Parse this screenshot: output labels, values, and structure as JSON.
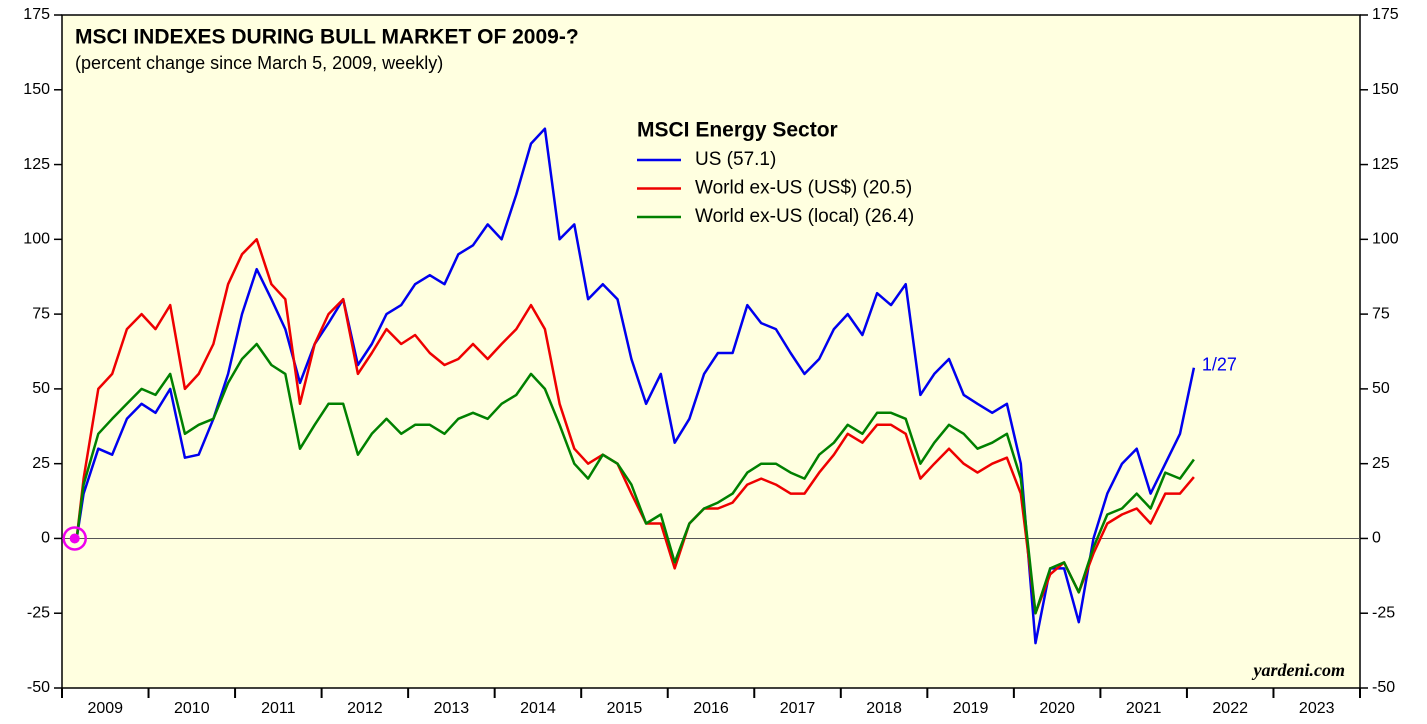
{
  "chart_data": {
    "type": "line",
    "title": "MSCI INDEXES DURING BULL MARKET OF 2009-?",
    "subtitle": "(percent change since March 5, 2009, weekly)",
    "legend_title": "MSCI Energy Sector",
    "annotation": "1/27",
    "source": "yardeni.com",
    "xlim": [
      2009,
      2024
    ],
    "xticks": [
      2009,
      2010,
      2011,
      2012,
      2013,
      2014,
      2015,
      2016,
      2017,
      2018,
      2019,
      2020,
      2021,
      2022,
      2023
    ],
    "ylim": [
      -50,
      175
    ],
    "yticks": [
      -50,
      -25,
      0,
      25,
      50,
      75,
      100,
      125,
      150,
      175
    ],
    "x": [
      2009.17,
      2009.25,
      2009.42,
      2009.58,
      2009.75,
      2009.92,
      2010.08,
      2010.25,
      2010.42,
      2010.58,
      2010.75,
      2010.92,
      2011.08,
      2011.25,
      2011.42,
      2011.58,
      2011.75,
      2011.92,
      2012.08,
      2012.25,
      2012.42,
      2012.58,
      2012.75,
      2012.92,
      2013.08,
      2013.25,
      2013.42,
      2013.58,
      2013.75,
      2013.92,
      2014.08,
      2014.25,
      2014.42,
      2014.58,
      2014.75,
      2014.92,
      2015.08,
      2015.25,
      2015.42,
      2015.58,
      2015.75,
      2015.92,
      2016.08,
      2016.25,
      2016.42,
      2016.58,
      2016.75,
      2016.92,
      2017.08,
      2017.25,
      2017.42,
      2017.58,
      2017.75,
      2017.92,
      2018.08,
      2018.25,
      2018.42,
      2018.58,
      2018.75,
      2018.92,
      2019.08,
      2019.25,
      2019.42,
      2019.58,
      2019.75,
      2019.92,
      2020.08,
      2020.25,
      2020.42,
      2020.58,
      2020.75,
      2020.92,
      2021.08,
      2021.25,
      2021.42,
      2021.58,
      2021.75,
      2021.92,
      2022.08
    ],
    "series": [
      {
        "name": "US (57.1)",
        "color": "#0000ee",
        "values": [
          0,
          15,
          30,
          28,
          40,
          45,
          42,
          50,
          27,
          28,
          40,
          55,
          75,
          90,
          80,
          70,
          52,
          65,
          72,
          80,
          58,
          65,
          75,
          78,
          85,
          88,
          85,
          95,
          98,
          105,
          100,
          115,
          132,
          137,
          100,
          105,
          80,
          85,
          80,
          60,
          45,
          55,
          32,
          40,
          55,
          62,
          62,
          78,
          72,
          70,
          62,
          55,
          60,
          70,
          75,
          68,
          82,
          78,
          85,
          48,
          55,
          60,
          48,
          45,
          42,
          45,
          25,
          -35,
          -10,
          -10,
          -28,
          0,
          15,
          25,
          30,
          15,
          25,
          35,
          57.1
        ]
      },
      {
        "name": "World ex-US (US$) (20.5)",
        "color": "#ee0000",
        "values": [
          0,
          20,
          50,
          55,
          70,
          75,
          70,
          78,
          50,
          55,
          65,
          85,
          95,
          100,
          85,
          80,
          45,
          65,
          75,
          80,
          55,
          62,
          70,
          65,
          68,
          62,
          58,
          60,
          65,
          60,
          65,
          70,
          78,
          70,
          45,
          30,
          25,
          28,
          25,
          15,
          5,
          5,
          -10,
          5,
          10,
          10,
          12,
          18,
          20,
          18,
          15,
          15,
          22,
          28,
          35,
          32,
          38,
          38,
          35,
          20,
          25,
          30,
          25,
          22,
          25,
          27,
          15,
          -25,
          -12,
          -8,
          -18,
          -5,
          5,
          8,
          10,
          5,
          15,
          15,
          20.5
        ]
      },
      {
        "name": "World ex-US (local) (26.4)",
        "color": "#008000",
        "values": [
          0,
          18,
          35,
          40,
          45,
          50,
          48,
          55,
          35,
          38,
          40,
          52,
          60,
          65,
          58,
          55,
          30,
          38,
          45,
          45,
          28,
          35,
          40,
          35,
          38,
          38,
          35,
          40,
          42,
          40,
          45,
          48,
          55,
          50,
          38,
          25,
          20,
          28,
          25,
          18,
          5,
          8,
          -8,
          5,
          10,
          12,
          15,
          22,
          25,
          25,
          22,
          20,
          28,
          32,
          38,
          35,
          42,
          42,
          40,
          25,
          32,
          38,
          35,
          30,
          32,
          35,
          20,
          -25,
          -10,
          -8,
          -18,
          -3,
          8,
          10,
          15,
          10,
          22,
          20,
          26.4
        ]
      }
    ]
  }
}
